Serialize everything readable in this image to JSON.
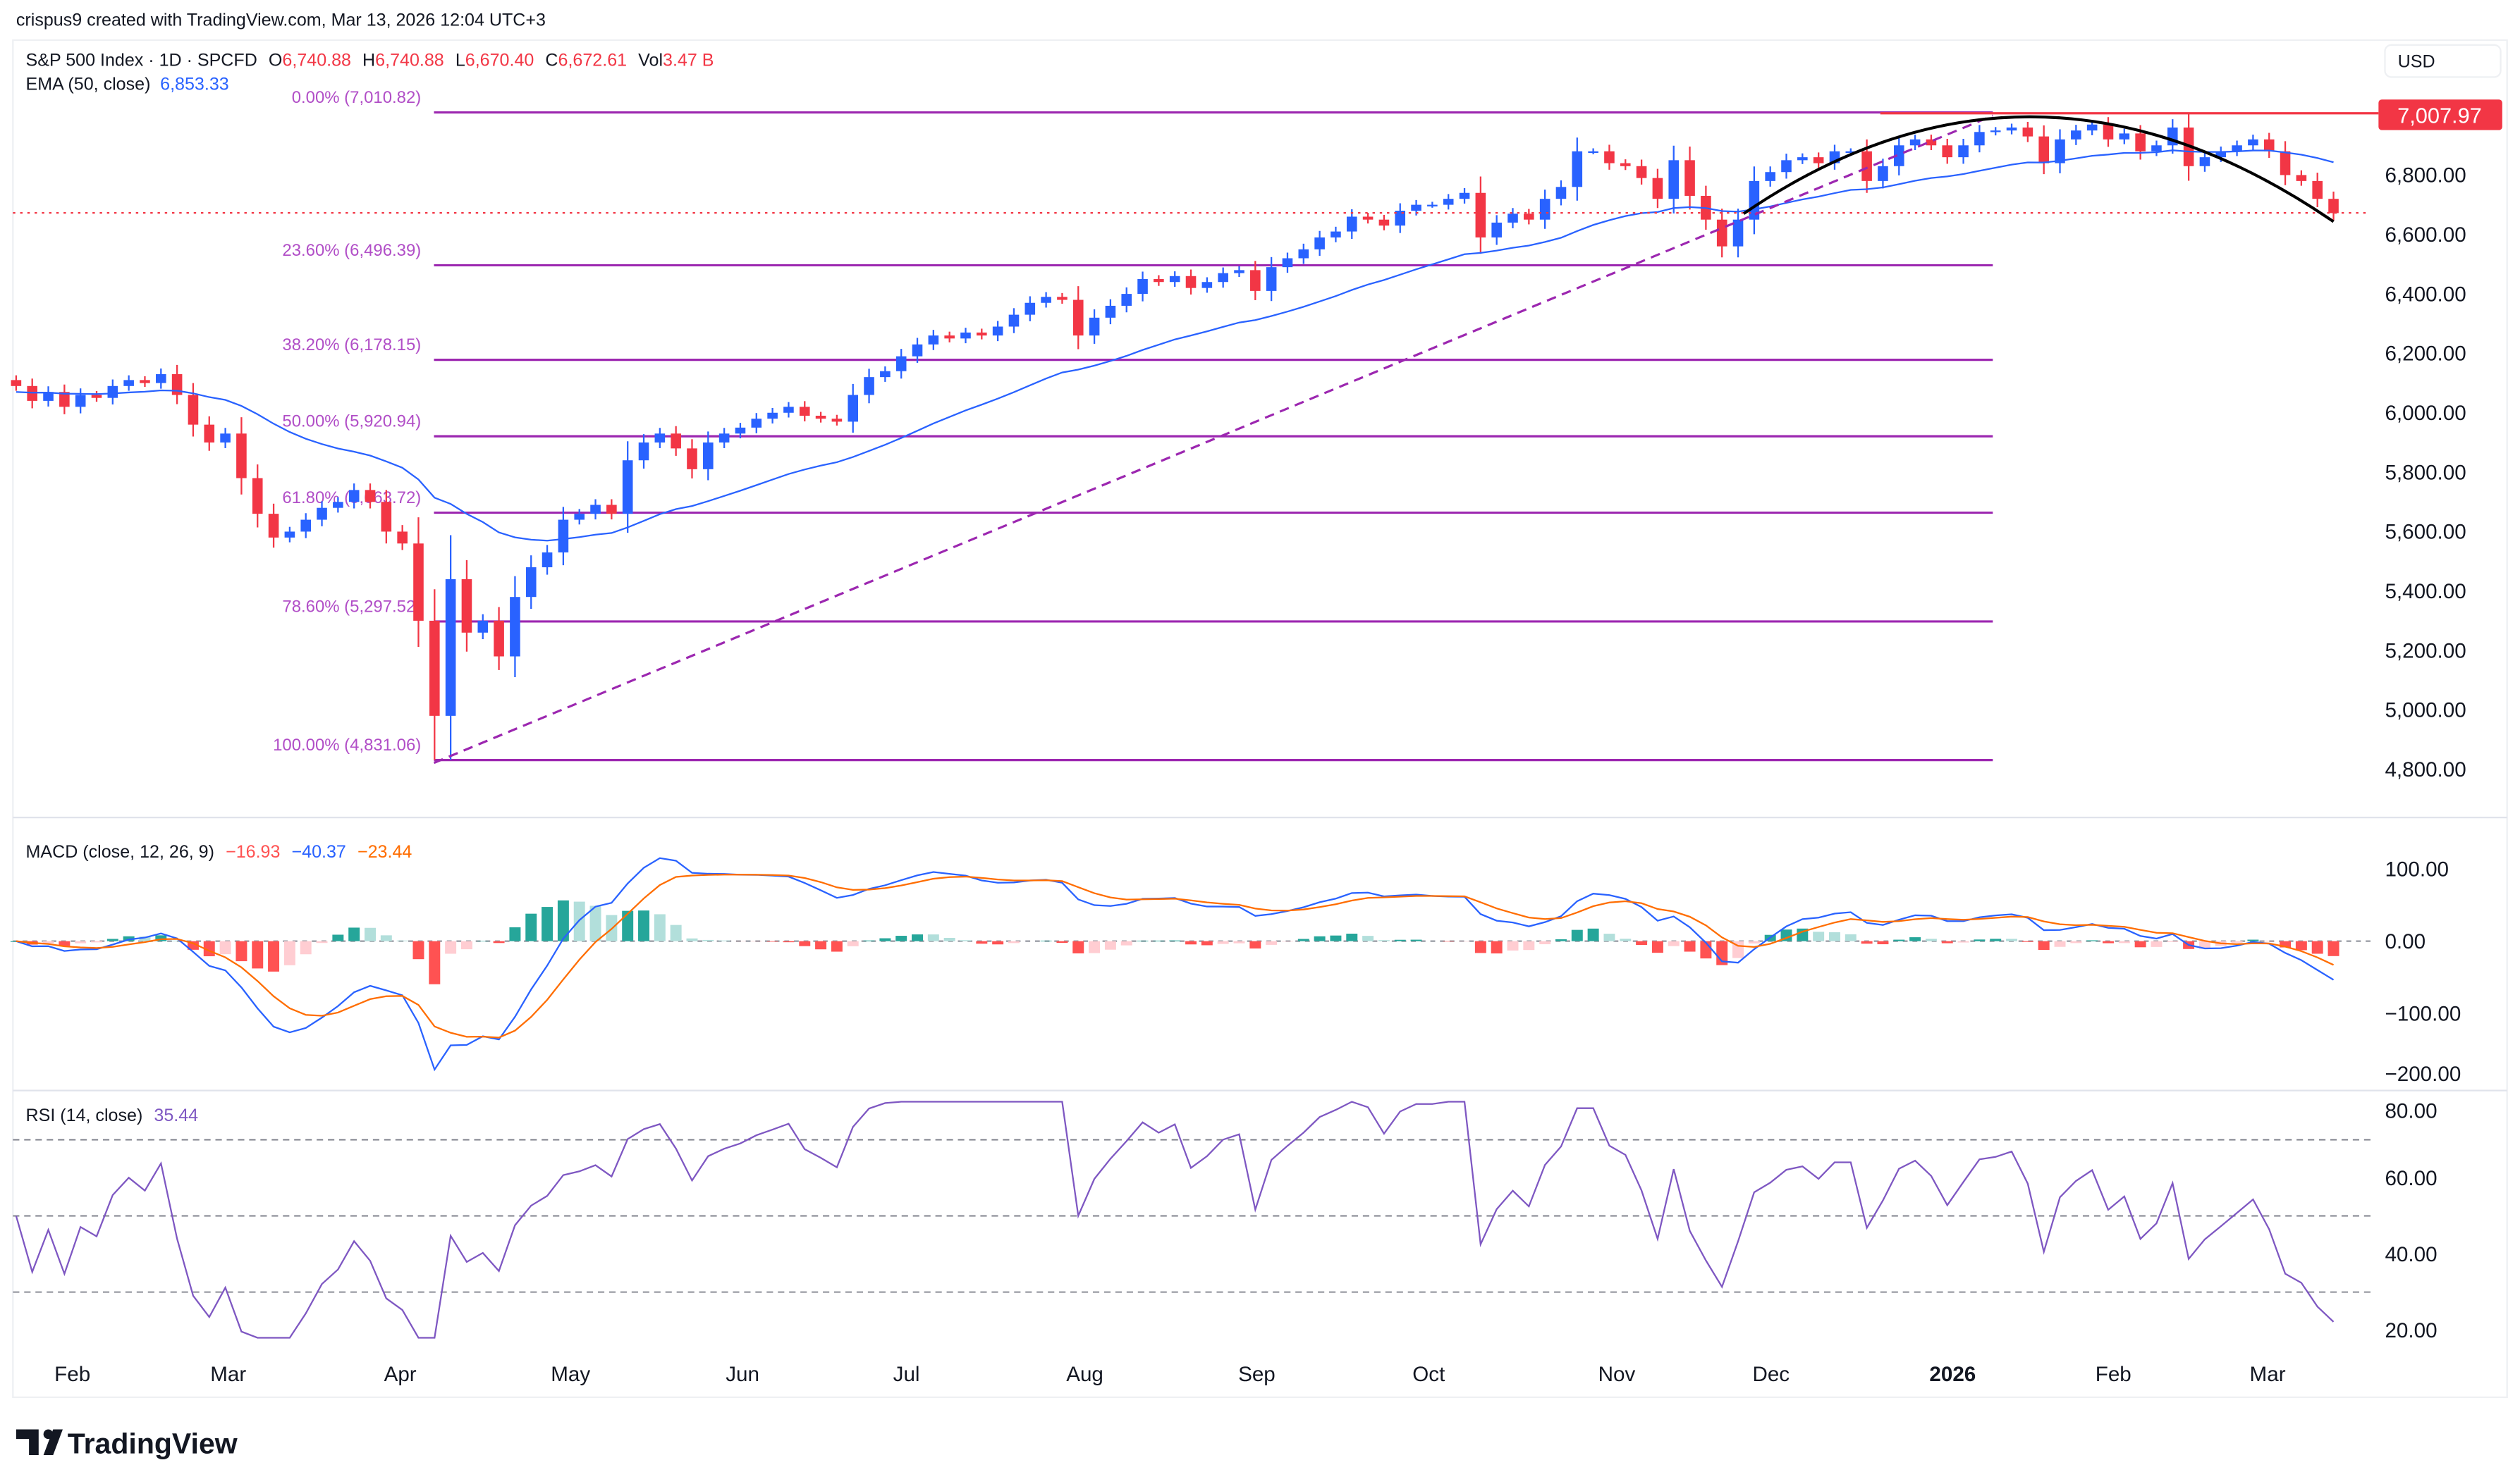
{
  "attribution": "crispus9 created with TradingView.com, Mar 13, 2026 12:04 UTC+3",
  "legend": {
    "symbol": "S&P 500 Index · 1D · SPCFD",
    "o_label": "O",
    "o": "6,740.88",
    "h_label": "H",
    "h": "6,740.88",
    "l_label": "L",
    "l": "6,670.40",
    "c_label": "C",
    "c": "6,672.61",
    "vol_label": "Vol",
    "vol": "3.47 B",
    "ema_label": "EMA (50, close)",
    "ema": "6,853.33"
  },
  "currency": "USD",
  "price_tag": "7,007.97",
  "macd_legend": {
    "label": "MACD (close, 12, 26, 9)",
    "hist": "−16.93",
    "macd": "−40.37",
    "signal": "−23.44"
  },
  "rsi_legend": {
    "label": "RSI (14, close)",
    "value": "35.44"
  },
  "logo": "TradingView",
  "colors": {
    "up": "#2962ff",
    "down": "#f23645",
    "ema": "#2962ff",
    "fib": "#9c27b0",
    "macd": "#2962ff",
    "signal": "#ff6d00",
    "rsi": "#7e57c2"
  },
  "chart_data": {
    "type": "candlestick",
    "price_axis": {
      "ticks": [
        "6,800.00",
        "6,600.00",
        "6,400.00",
        "6,200.00",
        "6,000.00",
        "5,800.00",
        "5,600.00",
        "5,400.00",
        "5,200.00",
        "5,000.00",
        "4,800.00"
      ],
      "values": [
        6800,
        6600,
        6400,
        6200,
        6000,
        5800,
        5600,
        5400,
        5200,
        5000,
        4800
      ]
    },
    "macd_axis": {
      "ticks": [
        "100.00",
        "0.00",
        "−100.00",
        "−200.00"
      ],
      "values": [
        100,
        0,
        -100,
        -200
      ]
    },
    "rsi_axis": {
      "ticks": [
        "80.00",
        "60.00",
        "40.00",
        "20.00"
      ],
      "values": [
        80,
        60,
        40,
        20
      ],
      "bands": [
        70,
        50,
        30
      ]
    },
    "x_ticks": [
      "Feb",
      "Mar",
      "Apr",
      "May",
      "Jun",
      "Jul",
      "Aug",
      "Sep",
      "Oct",
      "Nov",
      "Dec",
      "2026",
      "Feb",
      "Mar"
    ],
    "fib_levels": [
      {
        "label": "0.00% (7,010.82)",
        "value": 7010.82
      },
      {
        "label": "23.60% (6,496.39)",
        "value": 6496.39
      },
      {
        "label": "38.20% (6,178.15)",
        "value": 6178.15
      },
      {
        "label": "50.00% (5,920.94)",
        "value": 5920.94
      },
      {
        "label": "61.80% (5,663.72)",
        "value": 5663.72
      },
      {
        "label": "78.60% (5,297.52)",
        "value": 5297.52
      },
      {
        "label": "100.00% (4,831.06)",
        "value": 4831.06
      }
    ],
    "resistance": 7007.97,
    "last_close": 6672.61,
    "closes": [
      6090,
      6040,
      6070,
      6020,
      6060,
      6050,
      6090,
      6110,
      6100,
      6130,
      6060,
      5960,
      5900,
      5930,
      5780,
      5660,
      5580,
      5600,
      5640,
      5680,
      5700,
      5740,
      5700,
      5600,
      5560,
      5300,
      4980,
      5440,
      5260,
      5300,
      5180,
      5380,
      5480,
      5530,
      5640,
      5660,
      5690,
      5660,
      5840,
      5900,
      5930,
      5880,
      5810,
      5900,
      5930,
      5950,
      5980,
      6000,
      6020,
      5990,
      5980,
      5970,
      6060,
      6120,
      6140,
      6190,
      6230,
      6260,
      6250,
      6270,
      6260,
      6290,
      6330,
      6370,
      6390,
      6380,
      6260,
      6320,
      6360,
      6400,
      6450,
      6440,
      6460,
      6420,
      6440,
      6470,
      6480,
      6410,
      6490,
      6520,
      6550,
      6590,
      6610,
      6660,
      6650,
      6630,
      6680,
      6700,
      6700,
      6720,
      6740,
      6590,
      6640,
      6670,
      6650,
      6720,
      6760,
      6880,
      6880,
      6840,
      6830,
      6790,
      6720,
      6850,
      6730,
      6650,
      6560,
      6650,
      6780,
      6810,
      6850,
      6860,
      6840,
      6880,
      6880,
      6780,
      6830,
      6900,
      6920,
      6900,
      6860,
      6900,
      6945,
      6950,
      6960,
      6930,
      6840,
      6920,
      6950,
      6970,
      6920,
      6940,
      6880,
      6900,
      6960,
      6830,
      6860,
      6880,
      6900,
      6920,
      6880,
      6800,
      6780,
      6720,
      6672
    ]
  }
}
